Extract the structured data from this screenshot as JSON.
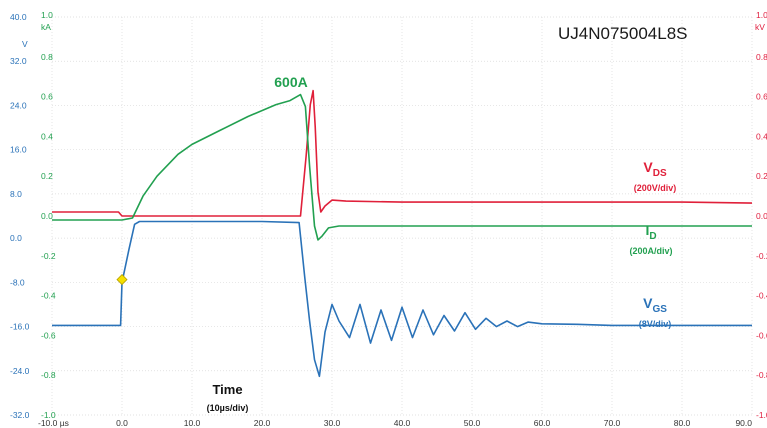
{
  "chart_data": {
    "type": "line",
    "title": "UJ4N075004L8S",
    "x_axis": {
      "ticks": [
        -10,
        0,
        10,
        20,
        30,
        40,
        50,
        60,
        70,
        80,
        90
      ],
      "tick_labels": [
        "-10.0 µs",
        "0.0",
        "10.0",
        "20.0",
        "30.0",
        "40.0",
        "50.0",
        "60.0",
        "70.0",
        "80.0",
        "90.0"
      ],
      "unit": "µs",
      "range": [
        -10,
        90
      ]
    },
    "left_axes": [
      {
        "unit": "V",
        "color": "#2a72b8",
        "range": [
          -32,
          40
        ],
        "ticks": [
          40,
          32,
          24,
          16,
          8,
          0,
          -8,
          -16,
          -24,
          -32
        ],
        "tick_labels": [
          "40.0",
          "32.0",
          "24.0",
          "16.0",
          "8.0",
          "0.0",
          "-8.0",
          "-16.0",
          "-24.0",
          "-32.0"
        ]
      },
      {
        "unit": "kA",
        "color": "#22a050",
        "range": [
          -1.0,
          1.0
        ],
        "ticks": [
          1.0,
          0.8,
          0.6,
          0.4,
          0.2,
          0.0,
          -0.2,
          -0.4,
          -0.6,
          -0.8,
          -1.0
        ],
        "tick_labels": [
          "1.0",
          "0.8",
          "0.6",
          "0.4",
          "0.2",
          "0.0",
          "-0.2",
          "-0.4",
          "-0.6",
          "-0.8",
          "-1.0"
        ]
      }
    ],
    "right_axis": {
      "unit": "kV",
      "color": "#e02040",
      "range": [
        -1.0,
        1.0
      ],
      "ticks": [
        1.0,
        0.8,
        0.6,
        0.4,
        0.2,
        0.0,
        -0.2,
        -0.4,
        -0.6,
        -0.8,
        -1.0
      ],
      "tick_labels": [
        "1.0",
        "0.8",
        "0.6",
        "0.4",
        "0.2",
        "0.0",
        "-0.2",
        "-0.4",
        "-0.6",
        "-0.8",
        "-1.0"
      ]
    },
    "grid": true,
    "series": [
      {
        "name": "VDS",
        "color": "#e0203a",
        "scale": "200V/div",
        "axis": "kV",
        "x": [
          -10,
          -0.5,
          0,
          1.5,
          5,
          10,
          20,
          25.5,
          26.3,
          26.9,
          27.3,
          27.6,
          28.0,
          28.4,
          29.0,
          30,
          32,
          40,
          50,
          60,
          70,
          80,
          90
        ],
        "y": [
          0.02,
          0.02,
          0.0,
          0.0,
          0.0,
          0.0,
          0.0,
          0.0,
          0.3,
          0.56,
          0.63,
          0.45,
          0.12,
          0.02,
          0.05,
          0.08,
          0.075,
          0.07,
          0.07,
          0.07,
          0.07,
          0.07,
          0.065
        ]
      },
      {
        "name": "ID",
        "color": "#22a050",
        "scale": "200A/div",
        "axis": "kA",
        "peak_label": "600A",
        "x": [
          -10,
          0,
          1.5,
          3,
          5,
          8,
          10,
          14,
          18,
          22,
          24,
          25.5,
          26.2,
          26.8,
          27.5,
          28,
          28.6,
          29.5,
          31,
          40,
          50,
          60,
          70,
          80,
          90
        ],
        "y": [
          -0.02,
          -0.02,
          -0.01,
          0.1,
          0.2,
          0.31,
          0.36,
          0.43,
          0.5,
          0.56,
          0.58,
          0.61,
          0.55,
          0.25,
          -0.05,
          -0.12,
          -0.1,
          -0.06,
          -0.05,
          -0.05,
          -0.05,
          -0.05,
          -0.05,
          -0.05,
          -0.05
        ]
      },
      {
        "name": "VGS",
        "color": "#2a72b8",
        "scale": "8V/div",
        "axis": "V",
        "marker": {
          "x": 0,
          "y": -7.5,
          "shape": "diamond",
          "color": "#f5e000"
        },
        "x": [
          -10,
          -0.2,
          0,
          0.5,
          1,
          1.8,
          2.5,
          5,
          10,
          15,
          20,
          25.3,
          26.1,
          26.8,
          27.5,
          28.2,
          29.0,
          30,
          31.0,
          32.5,
          34,
          35.5,
          37,
          38.5,
          40,
          41.5,
          43,
          44.5,
          46,
          47.5,
          49,
          50.5,
          52,
          53.5,
          55,
          56.5,
          58,
          60,
          65,
          70,
          80,
          90
        ],
        "y": [
          -15.8,
          -15.8,
          -8.0,
          -5.0,
          -2.0,
          2.5,
          3.0,
          3.0,
          3.0,
          3.0,
          3.0,
          2.8,
          -7.0,
          -15.0,
          -22.0,
          -25.0,
          -17.0,
          -12.0,
          -15.0,
          -18.0,
          -12.0,
          -19.0,
          -13.0,
          -18.5,
          -12.5,
          -18.0,
          -13.0,
          -17.5,
          -14.0,
          -16.8,
          -13.5,
          -16.5,
          -14.5,
          -16.0,
          -15.0,
          -16.0,
          -15.2,
          -15.5,
          -15.6,
          -15.8,
          -15.8,
          -15.8
        ]
      }
    ],
    "annotations": {
      "vds_label": "VDS",
      "vds_scale": "(200V/div)",
      "id_label": "ID",
      "id_scale": "(200A/div)",
      "vgs_label": "VGS",
      "vgs_scale": "(8V/div)",
      "peak_label": "600A",
      "time_label": "Time",
      "time_scale": "(10µs/div)"
    }
  }
}
